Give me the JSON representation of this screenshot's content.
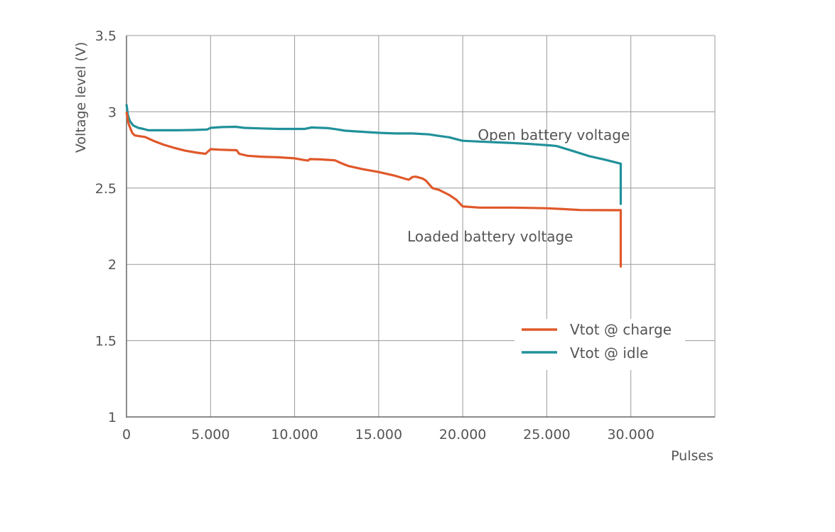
{
  "chart_data": {
    "type": "line",
    "xlabel": "Pulses",
    "ylabel": "Voltage level (V)",
    "xlim": [
      0,
      35000
    ],
    "ylim": [
      1,
      3.5
    ],
    "x_ticks": [
      0,
      5000,
      10000,
      15000,
      20000,
      25000,
      30000
    ],
    "x_tick_labels": [
      "0",
      "5.000",
      "10.000",
      "15.000",
      "20.000",
      "25.000",
      "30.000"
    ],
    "y_ticks": [
      1,
      1.5,
      2,
      2.5,
      3,
      3.5
    ],
    "y_tick_labels": [
      "1",
      "1.5",
      "2",
      "2.5",
      "3",
      "3.5"
    ],
    "grid": true,
    "legend_position": "right",
    "annotations": [
      {
        "text": "Open battery voltage",
        "x": 20900,
        "y": 2.815
      },
      {
        "text": "Loaded battery voltage",
        "x": 16700,
        "y": 2.15
      }
    ],
    "series": [
      {
        "name": "Vtot @ charge",
        "color": "#e0582a",
        "points": [
          [
            0,
            3.0
          ],
          [
            100,
            2.93
          ],
          [
            200,
            2.9
          ],
          [
            350,
            2.86
          ],
          [
            500,
            2.845
          ],
          [
            800,
            2.84
          ],
          [
            1100,
            2.835
          ],
          [
            1600,
            2.81
          ],
          [
            2200,
            2.785
          ],
          [
            2800,
            2.765
          ],
          [
            3500,
            2.745
          ],
          [
            4200,
            2.732
          ],
          [
            4700,
            2.725
          ],
          [
            5000,
            2.755
          ],
          [
            5500,
            2.752
          ],
          [
            6000,
            2.75
          ],
          [
            6550,
            2.748
          ],
          [
            6700,
            2.725
          ],
          [
            7200,
            2.712
          ],
          [
            8000,
            2.706
          ],
          [
            9000,
            2.702
          ],
          [
            10000,
            2.695
          ],
          [
            10500,
            2.685
          ],
          [
            10800,
            2.68
          ],
          [
            10900,
            2.69
          ],
          [
            11500,
            2.688
          ],
          [
            12000,
            2.685
          ],
          [
            12400,
            2.682
          ],
          [
            12800,
            2.662
          ],
          [
            13200,
            2.645
          ],
          [
            14000,
            2.625
          ],
          [
            15000,
            2.605
          ],
          [
            16000,
            2.58
          ],
          [
            16600,
            2.56
          ],
          [
            16800,
            2.555
          ],
          [
            17000,
            2.572
          ],
          [
            17200,
            2.575
          ],
          [
            17600,
            2.563
          ],
          [
            17800,
            2.55
          ],
          [
            18000,
            2.525
          ],
          [
            18200,
            2.5
          ],
          [
            18600,
            2.488
          ],
          [
            19200,
            2.455
          ],
          [
            19600,
            2.425
          ],
          [
            20000,
            2.38
          ],
          [
            21000,
            2.372
          ],
          [
            23000,
            2.372
          ],
          [
            25000,
            2.368
          ],
          [
            26000,
            2.362
          ],
          [
            27000,
            2.356
          ],
          [
            28500,
            2.355
          ],
          [
            29400,
            2.355
          ],
          [
            29400,
            1.98
          ]
        ]
      },
      {
        "name": "Vtot @ idle",
        "color": "#21919a",
        "points": [
          [
            0,
            3.05
          ],
          [
            80,
            2.98
          ],
          [
            200,
            2.94
          ],
          [
            400,
            2.91
          ],
          [
            700,
            2.895
          ],
          [
            1000,
            2.888
          ],
          [
            1300,
            2.879
          ],
          [
            2000,
            2.879
          ],
          [
            3000,
            2.879
          ],
          [
            4000,
            2.881
          ],
          [
            4800,
            2.884
          ],
          [
            5000,
            2.895
          ],
          [
            5700,
            2.9
          ],
          [
            6500,
            2.902
          ],
          [
            7000,
            2.895
          ],
          [
            8000,
            2.891
          ],
          [
            9000,
            2.888
          ],
          [
            10000,
            2.888
          ],
          [
            10600,
            2.888
          ],
          [
            11000,
            2.897
          ],
          [
            12000,
            2.893
          ],
          [
            12500,
            2.885
          ],
          [
            13000,
            2.876
          ],
          [
            14000,
            2.869
          ],
          [
            15000,
            2.862
          ],
          [
            16000,
            2.858
          ],
          [
            17000,
            2.858
          ],
          [
            18000,
            2.852
          ],
          [
            18500,
            2.843
          ],
          [
            19200,
            2.833
          ],
          [
            19800,
            2.815
          ],
          [
            20000,
            2.81
          ],
          [
            21000,
            2.805
          ],
          [
            22000,
            2.8
          ],
          [
            23000,
            2.795
          ],
          [
            24000,
            2.789
          ],
          [
            25000,
            2.781
          ],
          [
            25300,
            2.779
          ],
          [
            25600,
            2.775
          ],
          [
            26500,
            2.745
          ],
          [
            27500,
            2.71
          ],
          [
            28500,
            2.685
          ],
          [
            29400,
            2.66
          ],
          [
            29400,
            2.39
          ]
        ]
      }
    ]
  }
}
